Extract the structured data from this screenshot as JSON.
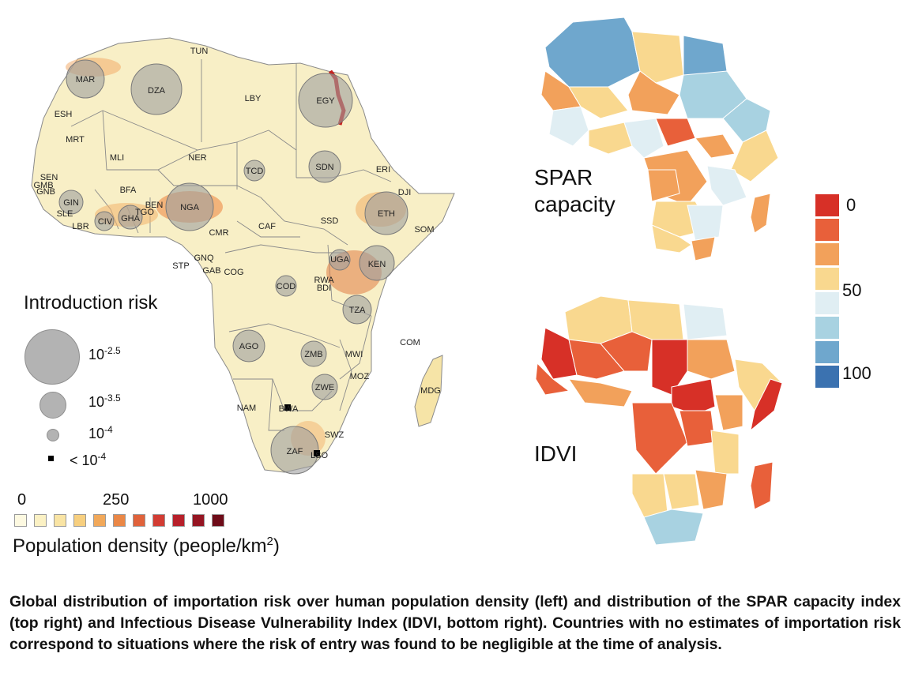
{
  "maps": {
    "left_country_labels": [
      "TUN",
      "MAR",
      "DZA",
      "LBY",
      "EGY",
      "ESH",
      "MRT",
      "MLI",
      "NER",
      "TCD",
      "SDN",
      "ERI",
      "DJI",
      "SEN",
      "GMB",
      "GNB",
      "GIN",
      "SLE",
      "LBR",
      "CIV",
      "GHA",
      "TGO",
      "BEN",
      "BFA",
      "NGA",
      "CMR",
      "CAF",
      "SSD",
      "ETH",
      "SOM",
      "STP",
      "GNQ",
      "GAB",
      "COG",
      "COD",
      "UGA",
      "KEN",
      "RWA",
      "BDI",
      "TZA",
      "AGO",
      "ZMB",
      "MWI",
      "MOZ",
      "COM",
      "MDG",
      "ZWE",
      "NAM",
      "BWA",
      "SWZ",
      "ZAF",
      "LSO"
    ],
    "spar_title": "SPAR capacity",
    "idvi_title": "IDVI"
  },
  "introduction_risk": {
    "title": "Introduction risk",
    "items": [
      {
        "base": "10",
        "exp": "-2.5"
      },
      {
        "base": "10",
        "exp": "-3.5"
      },
      {
        "base": "10",
        "exp": "-4"
      },
      {
        "base": "< 10",
        "exp": "-4"
      }
    ]
  },
  "population_density": {
    "ticks": [
      "0",
      "250",
      "1000"
    ],
    "title": "Population density (people/km",
    "title_sup": "2",
    "title_end": ")",
    "colors": [
      "#fdf9e1",
      "#fbf1c4",
      "#f9e4a4",
      "#f7cf7f",
      "#f1a85a",
      "#ea8746",
      "#e0623b",
      "#d23c33",
      "#b7202a",
      "#951522",
      "#6e0b18"
    ]
  },
  "spar_legend": {
    "labels": [
      "0",
      "50",
      "100"
    ],
    "colors": [
      "#d73027",
      "#e8603a",
      "#f2a15b",
      "#f9d88f",
      "#e0eef3",
      "#a8d2e1",
      "#6fa7cd",
      "#3b72b0"
    ]
  },
  "caption": "Global distribution of importation risk over human population density (left) and distribution of the SPAR capacity index (top right) and Infectious Disease Vulnerability Index (IDVI, bottom right). Countries with no estimates of importation risk correspond to situations where the risk of entry was found to be negligible at the time of analysis."
}
